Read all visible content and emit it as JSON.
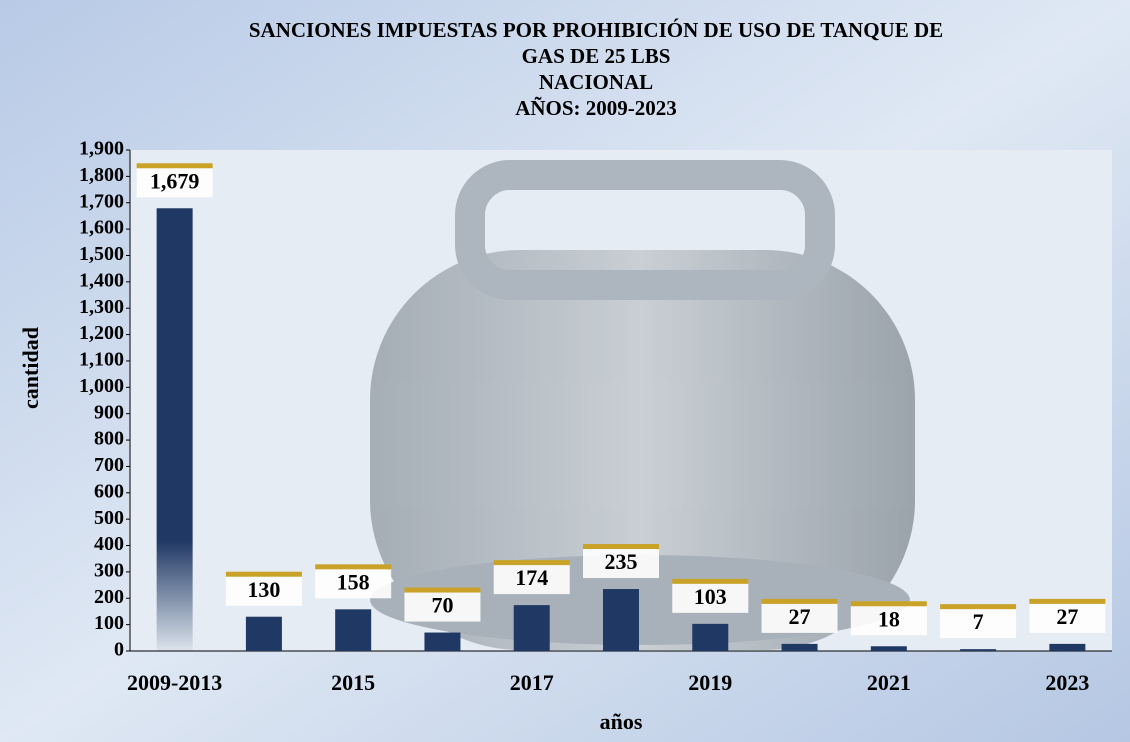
{
  "chart_data": {
    "type": "bar",
    "title": [
      "SANCIONES IMPUESTAS POR PROHIBICIÓN DE USO DE TANQUE DE",
      "GAS DE 25 LBS",
      "NACIONAL",
      "AÑOS: 2009-2023"
    ],
    "x_label": "años",
    "y_label": "cantidad",
    "categories": [
      "2009-2013",
      null,
      "2015",
      null,
      "2017",
      null,
      "2019",
      null,
      "2021",
      null,
      "2023"
    ],
    "values": [
      1679,
      130,
      158,
      70,
      174,
      235,
      103,
      27,
      18,
      7,
      27
    ],
    "value_labels": [
      "1,679",
      "130",
      "158",
      "70",
      "174",
      "235",
      "103",
      "27",
      "18",
      "7",
      "27"
    ],
    "color": "#1f3864",
    "ylim": [
      0,
      1900
    ],
    "yticks": [
      0,
      100,
      200,
      300,
      400,
      500,
      600,
      700,
      800,
      900,
      {
        "value": 1000,
        "label": "1,000"
      },
      {
        "value": 1100,
        "label": "1,100"
      },
      {
        "value": 1200,
        "label": "1,200"
      },
      {
        "value": 1300,
        "label": "1,300"
      },
      {
        "value": 1400,
        "label": "1,400"
      },
      {
        "value": 1500,
        "label": "1,500"
      },
      {
        "value": 1600,
        "label": "1,600"
      },
      {
        "value": 1700,
        "label": "1,700"
      },
      {
        "value": 1800,
        "label": "1,800"
      },
      {
        "value": 1900,
        "label": "1,900"
      }
    ]
  }
}
